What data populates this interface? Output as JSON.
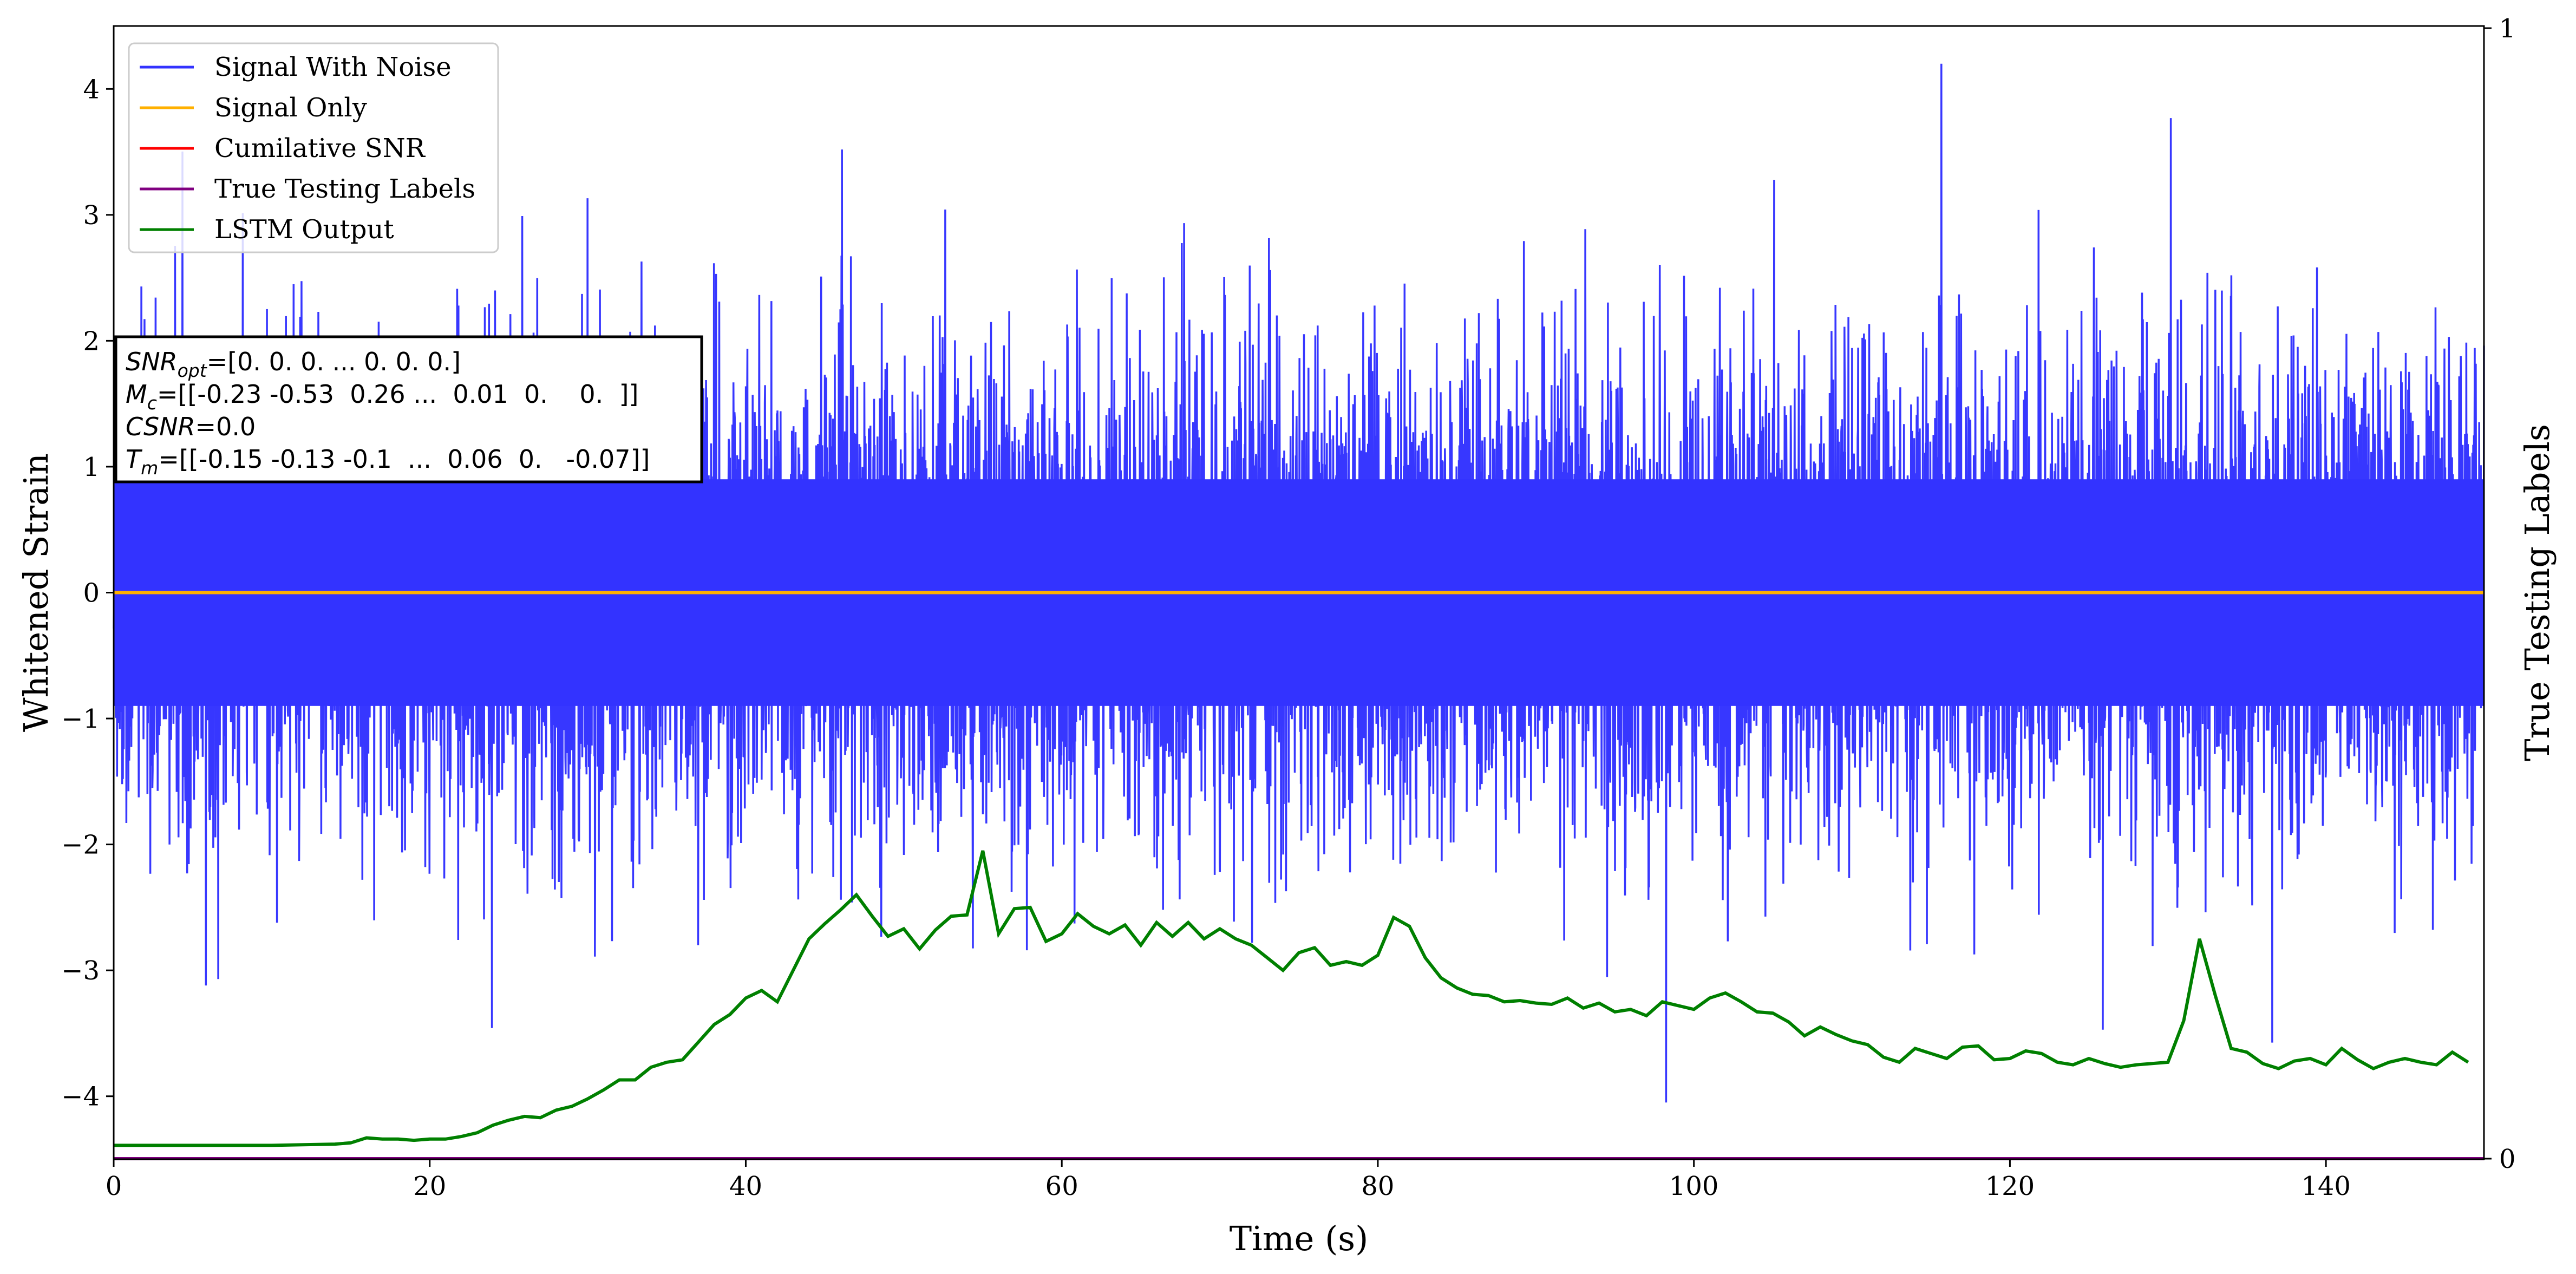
{
  "chart_data": {
    "type": "line",
    "xlabel": "Time (s)",
    "ylabel": "Whitened Strain",
    "y2label": "True Testing Labels",
    "xlim": [
      0,
      150
    ],
    "ylim": [
      -4.5,
      4.5
    ],
    "y2lim": [
      0,
      1
    ],
    "x_ticks": [
      0,
      20,
      40,
      60,
      80,
      100,
      120,
      140
    ],
    "y_ticks": [
      -4,
      -3,
      -2,
      -1,
      0,
      1,
      2,
      3,
      4
    ],
    "y_tick_labels": [
      "−4",
      "−3",
      "−2",
      "−1",
      "0",
      "1",
      "2",
      "3",
      "4"
    ],
    "y2_ticks": [
      0,
      1
    ],
    "grid": false,
    "legend_position": "top-left",
    "series": [
      {
        "name": "Signal With Noise",
        "color": "#3333ff",
        "axis": "left",
        "note_kind": "dense noise"
      },
      {
        "name": "Signal Only",
        "color": "#ffb000",
        "axis": "left",
        "x": [
          0,
          150
        ],
        "values": [
          0,
          0
        ]
      },
      {
        "name": "Cumilative SNR",
        "color": "#ff0000",
        "axis": "left",
        "x": [],
        "values": []
      },
      {
        "name": "True Testing Labels",
        "color": "#800080",
        "axis": "right",
        "x": [
          0,
          150
        ],
        "values": [
          0,
          0
        ]
      },
      {
        "name": "LSTM Output",
        "color": "#008000",
        "axis": "left",
        "x": [
          0,
          5,
          10,
          14,
          15,
          16,
          17,
          18,
          19,
          20,
          21,
          22,
          23,
          24,
          25,
          26,
          27,
          28,
          29,
          30,
          31,
          32,
          33,
          34,
          35,
          36,
          37,
          38,
          39,
          40,
          41,
          42,
          43,
          44,
          45,
          46,
          47,
          48,
          49,
          50,
          51,
          52,
          53,
          54,
          55,
          56,
          57,
          58,
          59,
          60,
          61,
          62,
          63,
          64,
          65,
          66,
          67,
          68,
          69,
          70,
          71,
          72,
          73,
          74,
          75,
          76,
          77,
          78,
          79,
          80,
          81,
          82,
          83,
          84,
          85,
          86,
          87,
          88,
          89,
          90,
          91,
          92,
          93,
          94,
          95,
          96,
          97,
          98,
          99,
          100,
          101,
          102,
          103,
          104,
          105,
          106,
          107,
          108,
          109,
          110,
          111,
          112,
          113,
          114,
          115,
          116,
          117,
          118,
          119,
          120,
          121,
          122,
          123,
          124,
          125,
          126,
          127,
          128,
          129,
          130,
          131,
          132,
          133,
          134,
          135,
          136,
          137,
          138,
          139,
          140,
          141,
          142,
          143,
          144,
          145,
          146,
          147,
          148,
          149
        ],
        "values": [
          -4.39,
          -4.39,
          -4.39,
          -4.38,
          -4.37,
          -4.33,
          -4.34,
          -4.34,
          -4.35,
          -4.34,
          -4.34,
          -4.32,
          -4.29,
          -4.23,
          -4.19,
          -4.16,
          -4.17,
          -4.11,
          -4.08,
          -4.02,
          -3.95,
          -3.87,
          -3.87,
          -3.77,
          -3.73,
          -3.71,
          -3.57,
          -3.43,
          -3.35,
          -3.22,
          -3.16,
          -3.25,
          -3.0,
          -2.75,
          -2.63,
          -2.52,
          -2.4,
          -2.57,
          -2.73,
          -2.67,
          -2.83,
          -2.68,
          -2.57,
          -2.56,
          -2.05,
          -2.71,
          -2.51,
          -2.5,
          -2.77,
          -2.71,
          -2.55,
          -2.65,
          -2.71,
          -2.64,
          -2.8,
          -2.62,
          -2.73,
          -2.62,
          -2.75,
          -2.67,
          -2.75,
          -2.8,
          -2.9,
          -3.0,
          -2.86,
          -2.82,
          -2.96,
          -2.93,
          -2.96,
          -2.88,
          -2.58,
          -2.65,
          -2.9,
          -3.06,
          -3.14,
          -3.19,
          -3.2,
          -3.25,
          -3.24,
          -3.26,
          -3.27,
          -3.22,
          -3.3,
          -3.26,
          -3.33,
          -3.31,
          -3.36,
          -3.25,
          -3.28,
          -3.31,
          -3.22,
          -3.18,
          -3.25,
          -3.33,
          -3.34,
          -3.41,
          -3.52,
          -3.45,
          -3.51,
          -3.56,
          -3.59,
          -3.69,
          -3.73,
          -3.62,
          -3.66,
          -3.7,
          -3.61,
          -3.6,
          -3.71,
          -3.7,
          -3.64,
          -3.66,
          -3.73,
          -3.75,
          -3.7,
          -3.74,
          -3.77,
          -3.75,
          -3.74,
          -3.73,
          -3.4,
          -2.75,
          -3.2,
          -3.62,
          -3.65,
          -3.74,
          -3.78,
          -3.72,
          -3.7,
          -3.75,
          -3.62,
          -3.71,
          -3.78,
          -3.73,
          -3.7,
          -3.73,
          -3.75,
          -3.65,
          -3.73
        ]
      }
    ]
  },
  "info_box": {
    "line1_sym": "SNR",
    "line1_sub": "opt",
    "line1_val": "=[0. 0. 0. ... 0. 0. 0.]",
    "line2_sym": "M",
    "line2_sub": "c",
    "line2_val": "=[[-0.23 -0.53  0.26 ...  0.01  0.    0.  ]]",
    "line3_sym": "CSNR",
    "line3_val": "=0.0",
    "line4_sym": "T",
    "line4_sub": "m",
    "line4_val": "=[[-0.15 -0.13 -0.1  ...  0.06  0.   -0.07]]"
  }
}
